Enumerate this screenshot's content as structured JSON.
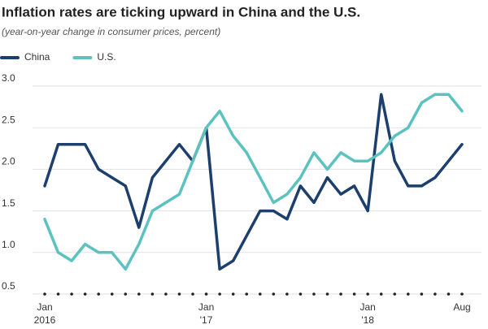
{
  "chart_data": {
    "type": "line",
    "title": "Inflation rates are ticking upward in China and the U.S.",
    "subtitle": "(year-on-year change in consumer prices, percent)",
    "categories": [
      "Jan",
      null,
      null,
      null,
      null,
      null,
      null,
      null,
      null,
      null,
      null,
      null,
      "Jan",
      null,
      null,
      null,
      null,
      null,
      null,
      null,
      null,
      null,
      null,
      null,
      "Jan",
      null,
      null,
      null,
      null,
      null,
      null,
      "Aug"
    ],
    "year_labels": [
      "2016",
      null,
      null,
      null,
      null,
      null,
      null,
      null,
      null,
      null,
      null,
      null,
      "'17",
      null,
      null,
      null,
      null,
      null,
      null,
      null,
      null,
      null,
      null,
      null,
      "'18",
      null,
      null,
      null,
      null,
      null,
      null,
      null
    ],
    "series": [
      {
        "name": "China",
        "color": "#1d3f6e",
        "values": [
          1.8,
          2.3,
          2.3,
          2.3,
          2.0,
          1.9,
          1.8,
          1.3,
          1.9,
          2.1,
          2.3,
          2.1,
          2.5,
          0.8,
          0.9,
          1.2,
          1.5,
          1.5,
          1.4,
          1.8,
          1.6,
          1.9,
          1.7,
          1.8,
          1.5,
          2.9,
          2.1,
          1.8,
          1.8,
          1.9,
          2.1,
          2.3
        ]
      },
      {
        "name": "U.S.",
        "color": "#5bc2c0",
        "values": [
          1.4,
          1.0,
          0.9,
          1.1,
          1.0,
          1.0,
          0.8,
          1.1,
          1.5,
          1.6,
          1.7,
          2.1,
          2.5,
          2.7,
          2.4,
          2.2,
          1.9,
          1.6,
          1.7,
          1.9,
          2.2,
          2.0,
          2.2,
          2.1,
          2.1,
          2.2,
          2.4,
          2.5,
          2.8,
          2.9,
          2.9,
          2.7
        ]
      }
    ],
    "ylim": [
      0.5,
      3.0
    ],
    "yticks": [
      {
        "value": 0.5,
        "label": "0.5"
      },
      {
        "value": 1.0,
        "label": "1.0"
      },
      {
        "value": 1.5,
        "label": "1.5"
      },
      {
        "value": 2.0,
        "label": "2.0"
      },
      {
        "value": 2.5,
        "label": "2.5"
      },
      {
        "value": 3.0,
        "label": "3.0"
      }
    ],
    "grid": true
  }
}
